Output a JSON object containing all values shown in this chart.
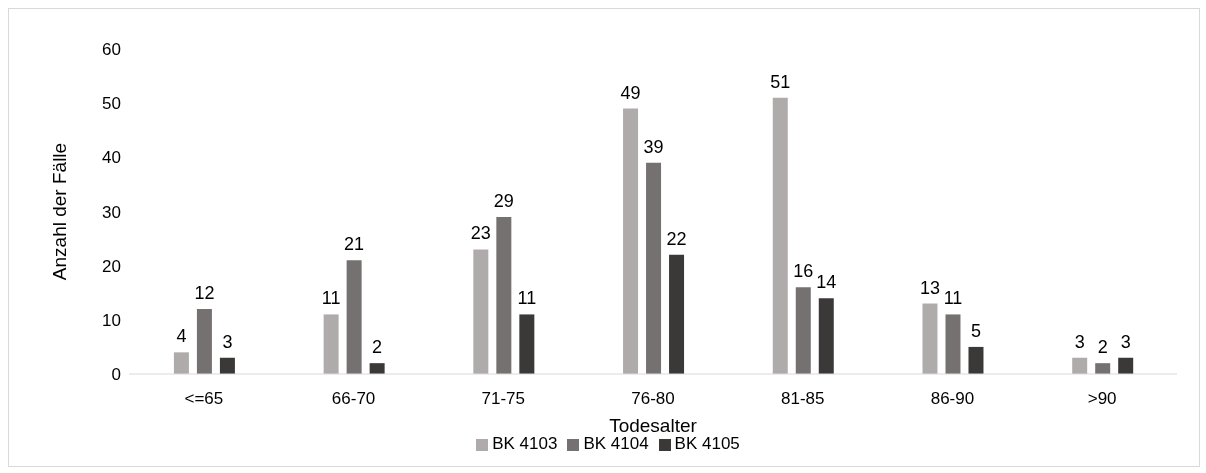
{
  "chart_data": {
    "type": "bar",
    "xlabel": "Todesalter",
    "ylabel": "Anzahl der Fälle",
    "categories": [
      "<=65",
      "66-70",
      "71-75",
      "76-80",
      "81-85",
      "86-90",
      ">90"
    ],
    "series": [
      {
        "name": "BK 4103",
        "color": "#afabab",
        "values": [
          4,
          11,
          23,
          49,
          51,
          13,
          3
        ]
      },
      {
        "name": "BK 4104",
        "color": "#767171",
        "values": [
          12,
          21,
          29,
          39,
          16,
          11,
          2
        ]
      },
      {
        "name": "BK 4105",
        "color": "#3b3838",
        "values": [
          3,
          2,
          11,
          22,
          14,
          5,
          3
        ]
      }
    ],
    "ylim": [
      0,
      60
    ],
    "yticks": [
      0,
      10,
      20,
      30,
      40,
      50,
      60
    ],
    "grid": false,
    "legend": "bottom",
    "data_labels": true
  }
}
